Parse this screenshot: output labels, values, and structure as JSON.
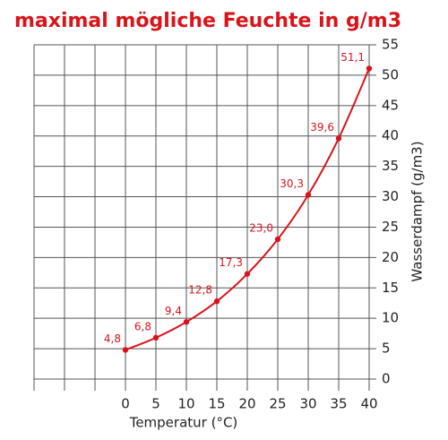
{
  "chart_data": {
    "type": "line",
    "title": "maximal mögliche Feuchte in g/m3",
    "x_label": "Temperatur (°C)",
    "y_label": "Wasserdampf (g/m3)",
    "x": [
      0,
      5,
      10,
      15,
      20,
      25,
      30,
      35,
      40
    ],
    "series": [
      {
        "name": "maximal mögliche Feuchte",
        "color": "#d9141b",
        "values": [
          4.8,
          6.8,
          9.4,
          12.8,
          17.3,
          23.0,
          30.3,
          39.6,
          51.1
        ],
        "value_labels": [
          "4,8",
          "6,8",
          "9,4",
          "12,8",
          "17,3",
          "23,0",
          "30,3",
          "39,6",
          "51,1"
        ]
      }
    ],
    "xlim": [
      -15,
      40
    ],
    "ylim": [
      0,
      55
    ],
    "xticks": [
      0,
      5,
      10,
      15,
      20,
      25,
      30,
      35,
      40
    ],
    "xgrid": [
      -15,
      -10,
      -5,
      0,
      5,
      10,
      15,
      20,
      25,
      30,
      35,
      40
    ],
    "yticks": [
      0,
      5,
      10,
      15,
      20,
      25,
      30,
      35,
      40,
      45,
      50,
      55
    ],
    "grid": true
  }
}
